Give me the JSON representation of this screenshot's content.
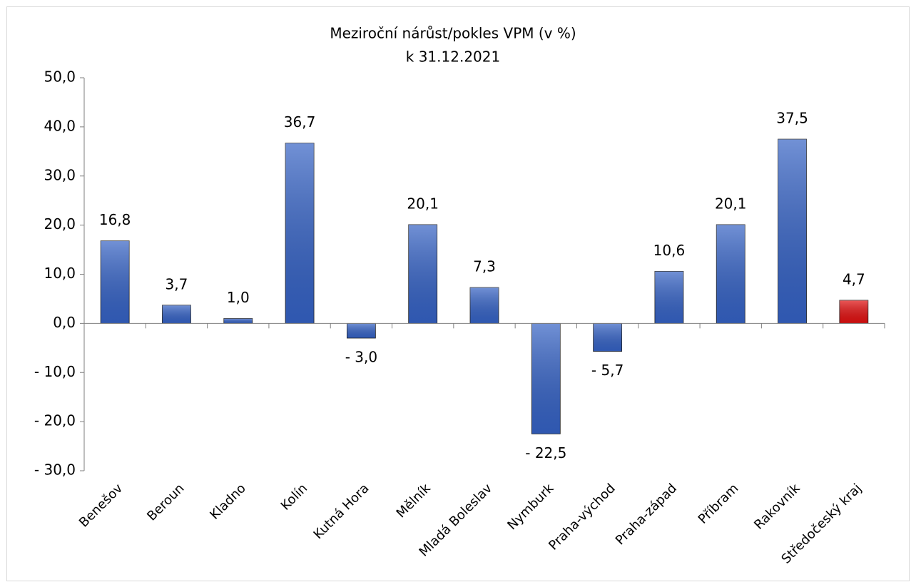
{
  "chart_data": {
    "type": "bar",
    "title": "Meziroční nárůst/pokles VPM (v %)",
    "subtitle": "k 31.12.2021",
    "categories": [
      "Benešov",
      "Beroun",
      "Kladno",
      "Kolín",
      "Kutná Hora",
      "Mělník",
      "Mladá Boleslav",
      "Nymburk",
      "Praha-východ",
      "Praha-západ",
      "Příbram",
      "Rakovník",
      "Středočeský kraj"
    ],
    "values": [
      16.8,
      3.7,
      1.0,
      36.7,
      -3.0,
      20.1,
      7.3,
      -22.5,
      -5.7,
      10.6,
      20.1,
      37.5,
      4.7
    ],
    "value_labels": [
      "16,8",
      "3,7",
      "1,0",
      "36,7",
      "- 3,0",
      "20,1",
      "7,3",
      "- 22,5",
      "- 5,7",
      "10,6",
      "20,1",
      "37,5",
      "4,7"
    ],
    "colors": [
      "#3562c4",
      "#3562c4",
      "#3562c4",
      "#3562c4",
      "#3562c4",
      "#3562c4",
      "#3562c4",
      "#3562c4",
      "#3562c4",
      "#3562c4",
      "#3562c4",
      "#3562c4",
      "#e01010"
    ],
    "ylim": [
      -30,
      50
    ],
    "yticks": [
      {
        "value": -30,
        "label": "- 30,0"
      },
      {
        "value": -20,
        "label": "- 20,0"
      },
      {
        "value": -10,
        "label": "- 10,0"
      },
      {
        "value": 0,
        "label": "0,0"
      },
      {
        "value": 10,
        "label": "10,0"
      },
      {
        "value": 20,
        "label": "20,0"
      },
      {
        "value": 30,
        "label": "30,0"
      },
      {
        "value": 40,
        "label": "40,0"
      },
      {
        "value": 50,
        "label": "50,0"
      }
    ],
    "grid": false
  }
}
